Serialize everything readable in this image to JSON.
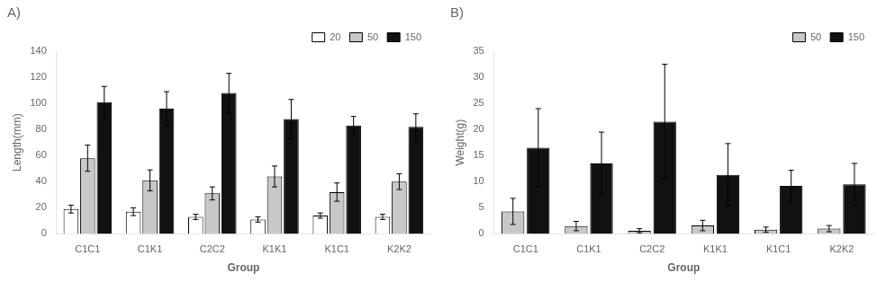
{
  "chart_data": [
    {
      "type": "bar",
      "annotation": "A)",
      "categories": [
        "C1C1",
        "C1K1",
        "C2C2",
        "K1K1",
        "K1C1",
        "K2K2"
      ],
      "series": [
        {
          "name": "20",
          "color": "#ffffff",
          "values": [
            19,
            17,
            13,
            11,
            14,
            13
          ],
          "errors": [
            3,
            3,
            2,
            2,
            2,
            2
          ]
        },
        {
          "name": "50",
          "color": "#c8c8c8",
          "values": [
            58,
            41,
            31,
            44,
            32,
            40
          ],
          "errors": [
            10,
            8,
            5,
            8,
            7,
            6
          ]
        },
        {
          "name": "150",
          "color": "#111111",
          "values": [
            101,
            96,
            108,
            88,
            83,
            82
          ],
          "errors": [
            12,
            13,
            15,
            15,
            7,
            10
          ]
        }
      ],
      "xlabel": "Group",
      "ylabel": "Length(mm)",
      "ylim": [
        0,
        140
      ],
      "yticks": [
        0,
        20,
        40,
        60,
        80,
        100,
        120,
        140
      ],
      "grid": false,
      "legend": "upper right"
    },
    {
      "type": "bar",
      "annotation": "B)",
      "categories": [
        "C1C1",
        "C1K1",
        "C2C2",
        "K1K1",
        "K1C1",
        "K2K2"
      ],
      "series": [
        {
          "name": "50",
          "color": "#c8c8c8",
          "values": [
            4.3,
            1.5,
            0.6,
            1.6,
            0.8,
            1.0
          ],
          "errors": [
            2.5,
            0.9,
            0.4,
            1.0,
            0.5,
            0.6
          ]
        },
        {
          "name": "150",
          "color": "#111111",
          "values": [
            16.5,
            13.5,
            21.5,
            11.3,
            9.2,
            9.5
          ],
          "errors": [
            7.5,
            6.0,
            11.0,
            6.0,
            3.0,
            4.0
          ]
        }
      ],
      "xlabel": "Group",
      "ylabel": "Weight(g)",
      "ylim": [
        0,
        35
      ],
      "yticks": [
        0,
        5,
        10,
        15,
        20,
        25,
        30,
        35
      ],
      "grid": false,
      "legend": "upper right"
    }
  ]
}
